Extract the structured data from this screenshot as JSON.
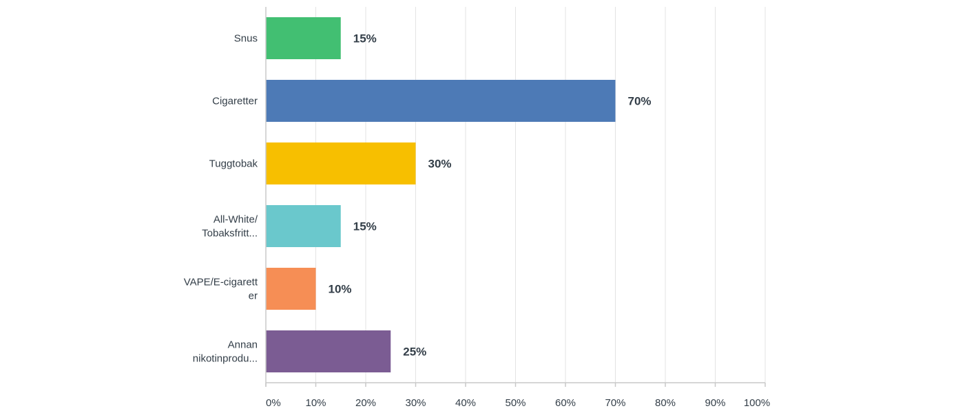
{
  "chart_data": {
    "type": "bar",
    "orientation": "horizontal",
    "categories": [
      [
        "Snus"
      ],
      [
        "Cigaretter"
      ],
      [
        "Tuggtobak"
      ],
      [
        "All-White/",
        "Tobaksfritt..."
      ],
      [
        "VAPE/E-cigarett",
        "er"
      ],
      [
        "Annan",
        "nikotinprodu..."
      ]
    ],
    "values": [
      15,
      70,
      30,
      15,
      10,
      25
    ],
    "value_labels": [
      "15%",
      "70%",
      "30%",
      "15%",
      "10%",
      "25%"
    ],
    "colors": [
      "#42bf72",
      "#4d7ab6",
      "#f7bf00",
      "#6ac8cc",
      "#f68e55",
      "#7b5c93"
    ],
    "xlim": [
      0,
      100
    ],
    "xticks": [
      0,
      10,
      20,
      30,
      40,
      50,
      60,
      70,
      80,
      90,
      100
    ],
    "xtick_labels": [
      "0%",
      "10%",
      "20%",
      "30%",
      "40%",
      "50%",
      "60%",
      "70%",
      "80%",
      "90%",
      "100%"
    ],
    "grid": true,
    "title": "",
    "xlabel": "",
    "ylabel": ""
  }
}
